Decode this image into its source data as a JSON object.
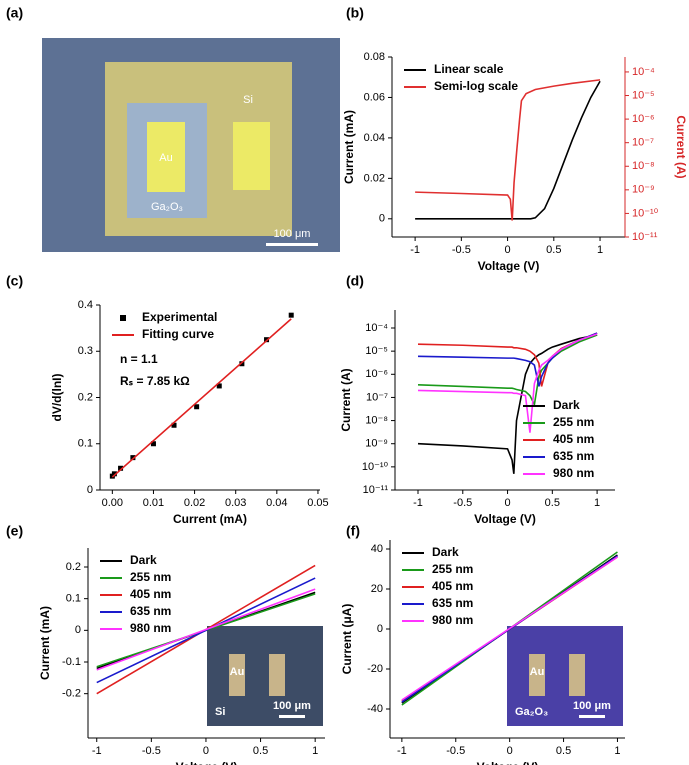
{
  "micrograph": {
    "panel_label": "(a)",
    "substrate": "Si",
    "electrode": "Au",
    "film": "Ga₂O₃",
    "scale_bar": "100 μm"
  },
  "chart_data": [
    {
      "panel_label": "(b)",
      "type": "line",
      "x_label": "Voltage (V)",
      "y_label": "Current (mA)",
      "y2_label": "Current (A)",
      "y2_color": "#d62728",
      "xlim": [
        -1.25,
        1.27
      ],
      "xticks": [
        -1,
        -0.5,
        0,
        0.5,
        1
      ],
      "ylim": [
        -0.009,
        0.08
      ],
      "yticks": [
        0,
        0.02,
        0.04,
        0.06,
        0.08
      ],
      "y2lim": [
        1e-11,
        0.00043
      ],
      "y2log": true,
      "y2ticks": [
        {
          "value": 0.0001,
          "label": "10⁻⁴"
        },
        {
          "value": 1e-05,
          "label": "10⁻⁵"
        },
        {
          "value": 1e-06,
          "label": "10⁻⁶"
        },
        {
          "value": 1e-07,
          "label": "10⁻⁷"
        },
        {
          "value": 1e-08,
          "label": "10⁻⁸"
        },
        {
          "value": 1e-09,
          "label": "10⁻⁹"
        },
        {
          "value": 1e-10,
          "label": "10⁻¹⁰"
        },
        {
          "value": 1e-11,
          "label": "10⁻¹¹"
        }
      ],
      "legend": "upper left",
      "series": [
        {
          "name": "Linear scale",
          "color": "#000000",
          "x": [
            -1,
            0,
            0.25,
            0.3,
            0.4,
            0.5,
            0.6,
            0.7,
            0.8,
            0.9,
            1
          ],
          "values": [
            0,
            0,
            0,
            0.0005,
            0.005,
            0.015,
            0.027,
            0.039,
            0.05,
            0.06,
            0.068
          ]
        },
        {
          "name": "Semi-log scale",
          "color": "#e03030",
          "axis": "y2",
          "x": [
            -1,
            -0.5,
            0,
            0.03,
            0.05,
            0.07,
            0.1,
            0.13,
            0.15,
            0.2,
            0.3,
            0.5,
            0.7,
            1
          ],
          "values": [
            8e-10,
            7e-10,
            6e-10,
            4e-10,
            5e-11,
            2e-09,
            5e-08,
            1e-06,
            6e-06,
            1.2e-05,
            1.8e-05,
            2.5e-05,
            3.3e-05,
            4.6e-05
          ]
        }
      ]
    },
    {
      "panel_label": "(c)",
      "type": "line",
      "x_label": "Current (mA)",
      "y_label": "dV/d(lnI)",
      "xlim": [
        -0.003,
        0.0505
      ],
      "xticks": [
        {
          "value": 0,
          "label": "0.00"
        },
        {
          "value": 0.01,
          "label": "0.01"
        },
        {
          "value": 0.02,
          "label": "0.02"
        },
        {
          "value": 0.03,
          "label": "0.03"
        },
        {
          "value": 0.04,
          "label": "0.04"
        },
        {
          "value": 0.05,
          "label": "0.05"
        }
      ],
      "ylim": [
        0,
        0.4
      ],
      "yticks": [
        0,
        0.1,
        0.2,
        0.3,
        0.4
      ],
      "legend": "upper left",
      "annotations": [
        "n = 1.1",
        "Rₛ = 7.85 kΩ"
      ],
      "series": [
        {
          "name": "Experimental",
          "color": "#000000",
          "marker": "square",
          "x": [
            0,
            0.0005,
            0.002,
            0.005,
            0.01,
            0.015,
            0.0205,
            0.026,
            0.0315,
            0.0375,
            0.0435
          ],
          "values": [
            0.03,
            0.035,
            0.047,
            0.07,
            0.1,
            0.14,
            0.18,
            0.225,
            0.273,
            0.325,
            0.378
          ]
        },
        {
          "name": "Fitting curve",
          "color": "#e02020",
          "x": [
            0,
            0.0435
          ],
          "values": [
            0.028,
            0.37
          ]
        }
      ]
    },
    {
      "panel_label": "(d)",
      "type": "line",
      "x_label": "Voltage (V)",
      "y_label": "Current (A)",
      "xlim": [
        -1.257,
        1.2
      ],
      "xticks": [
        -1,
        -0.5,
        0,
        0.5,
        1
      ],
      "ylim": [
        1e-11,
        0.0006
      ],
      "ylog": true,
      "yticks": [
        {
          "value": 0.0001,
          "label": "10⁻⁴"
        },
        {
          "value": 1e-05,
          "label": "10⁻⁵"
        },
        {
          "value": 1e-06,
          "label": "10⁻⁶"
        },
        {
          "value": 1e-07,
          "label": "10⁻⁷"
        },
        {
          "value": 1e-08,
          "label": "10⁻⁸"
        },
        {
          "value": 1e-09,
          "label": "10⁻⁹"
        },
        {
          "value": 1e-10,
          "label": "10⁻¹⁰"
        },
        {
          "value": 1e-11,
          "label": "10⁻¹¹"
        }
      ],
      "legend": "lower right",
      "x": [
        -1,
        -0.5,
        0,
        0.05,
        0.07,
        0.1,
        0.2,
        0.25,
        0.3,
        0.35,
        0.38,
        0.45,
        0.5,
        0.6,
        0.8,
        1
      ],
      "series": [
        {
          "name": "Dark",
          "color": "#000000",
          "values": [
            1e-09,
            8e-10,
            6e-10,
            2e-10,
            5e-11,
            1e-08,
            1e-06,
            3e-06,
            5e-06,
            7e-06,
            8e-06,
            1.2e-05,
            1.5e-05,
            2e-05,
            3.5e-05,
            5e-05
          ]
        },
        {
          "name": "255 nm",
          "color": "#1a9a1a",
          "values": [
            3.5e-07,
            3e-07,
            2.5e-07,
            2.5e-07,
            2.4e-07,
            2.2e-07,
            1.8e-07,
            1.2e-07,
            5e-08,
            8e-07,
            1.5e-06,
            3e-06,
            5e-06,
            1e-05,
            2.5e-05,
            5e-05
          ]
        },
        {
          "name": "405 nm",
          "color": "#e02020",
          "values": [
            2e-05,
            1.8e-05,
            1.5e-05,
            1.5e-05,
            1.4e-05,
            1.4e-05,
            1.2e-05,
            1e-05,
            7e-06,
            3e-06,
            3e-07,
            3e-06,
            6e-06,
            1.3e-05,
            3e-05,
            6e-05
          ]
        },
        {
          "name": "635 nm",
          "color": "#1a1acc",
          "values": [
            6e-06,
            5.5e-06,
            5e-06,
            5e-06,
            5e-06,
            4.8e-06,
            4e-06,
            3.5e-06,
            2.5e-06,
            3e-07,
            8e-07,
            3e-06,
            5e-06,
            1.2e-05,
            3e-05,
            6e-05
          ]
        },
        {
          "name": "980 nm",
          "color": "#ff33ff",
          "values": [
            2e-07,
            1.8e-07,
            1.6e-07,
            1.6e-07,
            1.5e-07,
            1.5e-07,
            1.2e-07,
            3e-09,
            4e-07,
            1.5e-06,
            2.5e-06,
            4e-06,
            6e-06,
            1.2e-05,
            3e-05,
            5.5e-05
          ]
        }
      ]
    },
    {
      "panel_label": "(e)",
      "type": "line",
      "x_label": "Voltage (V)",
      "y_label": "Current (mA)",
      "xlim": [
        -1.08,
        1.09
      ],
      "xticks": [
        -1,
        -0.5,
        0,
        0.5,
        1
      ],
      "ylim": [
        -0.34,
        0.26
      ],
      "yticks": [
        -0.2,
        -0.1,
        0,
        0.1,
        0.2
      ],
      "legend": "upper left",
      "inset": {
        "electrode": "Au",
        "substrate": "Si",
        "scale_bar": "100 μm"
      },
      "x": [
        -1,
        1
      ],
      "series": [
        {
          "name": "Dark",
          "color": "#000000",
          "values": [
            -0.12,
            0.12
          ]
        },
        {
          "name": "255 nm",
          "color": "#1a9a1a",
          "values": [
            -0.115,
            0.115
          ]
        },
        {
          "name": "405 nm",
          "color": "#e02020",
          "values": [
            -0.2,
            0.205
          ]
        },
        {
          "name": "635 nm",
          "color": "#1a1acc",
          "values": [
            -0.165,
            0.165
          ]
        },
        {
          "name": "980 nm",
          "color": "#ff33ff",
          "values": [
            -0.125,
            0.13
          ]
        }
      ]
    },
    {
      "panel_label": "(f)",
      "type": "line",
      "x_label": "Voltage (V)",
      "y_label": "Current (μA)",
      "xlim": [
        -1.11,
        1.07
      ],
      "xticks": [
        -1,
        -0.5,
        0,
        0.5,
        1
      ],
      "ylim": [
        -54.5,
        44.5
      ],
      "yticks": [
        -40,
        -20,
        0,
        20,
        40
      ],
      "legend": "upper left",
      "inset": {
        "electrode": "Au",
        "substrate": "Ga₂O₃",
        "scale_bar": "100 μm"
      },
      "x": [
        -1,
        1
      ],
      "series": [
        {
          "name": "Dark",
          "color": "#000000",
          "values": [
            -37,
            37
          ]
        },
        {
          "name": "255 nm",
          "color": "#1a9a1a",
          "values": [
            -38,
            38.5
          ]
        },
        {
          "name": "405 nm",
          "color": "#e02020",
          "values": [
            -36,
            36
          ]
        },
        {
          "name": "635 nm",
          "color": "#1a1acc",
          "values": [
            -36.5,
            36.5
          ]
        },
        {
          "name": "980 nm",
          "color": "#ff33ff",
          "values": [
            -35.5,
            36
          ]
        }
      ]
    }
  ]
}
